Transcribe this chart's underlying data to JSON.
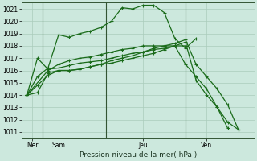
{
  "background_color": "#cce8dd",
  "grid_color": "#aaccbb",
  "line_color": "#1a6b1a",
  "title": "Pression niveau de la mer( hPa )",
  "ylim": [
    1010.5,
    1021.5
  ],
  "yticks": [
    1011,
    1012,
    1013,
    1014,
    1015,
    1016,
    1017,
    1018,
    1019,
    1020,
    1021
  ],
  "xlim": [
    0,
    22
  ],
  "xtick_positions": [
    1.0,
    3.5,
    11.5,
    17.5
  ],
  "xtick_labels": [
    "Mer",
    "Sam",
    "Jeu",
    "Ven"
  ],
  "vline_positions": [
    2.0,
    8.0,
    15.5
  ],
  "line1": {
    "x": [
      0.5,
      1.5,
      2.5,
      3.5,
      4.5,
      5.5,
      6.5,
      7.5,
      8.5,
      9.5,
      10.5,
      11.5,
      12.5,
      13.5,
      14.5,
      15.5,
      16.5
    ],
    "y": [
      1014.0,
      1015.5,
      1016.2,
      1018.9,
      1018.7,
      1019.0,
      1019.2,
      1019.5,
      1020.0,
      1021.1,
      1021.0,
      1021.3,
      1021.3,
      1020.7,
      1018.6,
      1017.8,
      1018.6
    ]
  },
  "line2": {
    "x": [
      0.5,
      1.5,
      2.5,
      3.5,
      4.5,
      5.5,
      6.5,
      7.5,
      8.5,
      9.5,
      10.5,
      11.5,
      12.5,
      13.5,
      14.5,
      15.5,
      16.5,
      17.5,
      18.5,
      19.5
    ],
    "y": [
      1014.0,
      1014.8,
      1015.6,
      1016.0,
      1016.0,
      1016.1,
      1016.3,
      1016.5,
      1016.6,
      1016.8,
      1017.0,
      1017.2,
      1017.4,
      1017.7,
      1018.0,
      1018.3,
      1015.2,
      1014.0,
      1013.0,
      1011.3
    ]
  },
  "line3": {
    "x": [
      0.5,
      1.5,
      2.5,
      3.5,
      4.5,
      5.5,
      6.5,
      7.5,
      8.5,
      9.5,
      10.5,
      11.5,
      12.5,
      13.5,
      14.5,
      15.5,
      16.5,
      17.5,
      18.5,
      19.5,
      20.5
    ],
    "y": [
      1014.0,
      1014.2,
      1015.8,
      1016.0,
      1016.0,
      1016.1,
      1016.3,
      1016.5,
      1016.8,
      1017.0,
      1017.2,
      1017.5,
      1017.8,
      1018.0,
      1018.2,
      1018.5,
      1016.5,
      1015.5,
      1014.5,
      1013.2,
      1011.2
    ]
  },
  "line4": {
    "x": [
      0.5,
      2.5,
      3.5,
      4.5,
      5.5,
      6.5,
      7.5,
      8.5,
      9.5,
      10.5,
      11.5,
      12.5,
      13.5,
      14.5,
      15.5,
      16.5,
      17.5,
      18.5,
      19.5,
      20.5
    ],
    "y": [
      1014.0,
      1016.0,
      1016.5,
      1016.8,
      1017.0,
      1017.1,
      1017.3,
      1017.5,
      1017.7,
      1017.8,
      1018.0,
      1018.0,
      1018.0,
      1018.0,
      1016.5,
      1015.5,
      1014.5,
      1013.0,
      1011.8,
      1011.2
    ]
  },
  "line5": {
    "x": [
      0.5,
      1.5,
      2.5,
      3.5,
      4.5,
      5.5,
      6.5,
      7.5,
      8.5,
      9.5,
      10.5,
      11.5,
      12.5,
      13.5,
      14.5,
      15.5
    ],
    "y": [
      1014.0,
      1017.0,
      1016.1,
      1016.2,
      1016.4,
      1016.6,
      1016.7,
      1016.8,
      1017.0,
      1017.2,
      1017.4,
      1017.5,
      1017.7,
      1017.8,
      1018.0,
      1018.0
    ]
  }
}
